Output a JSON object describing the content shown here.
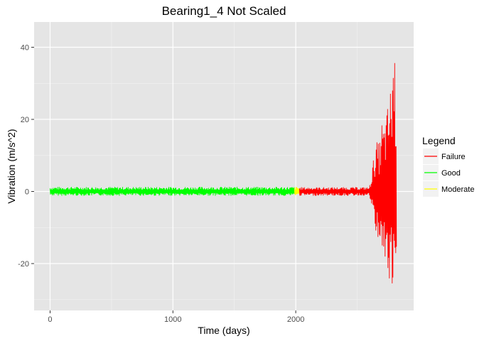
{
  "chart_data": {
    "type": "line",
    "title": "Bearing1_4 Not Scaled",
    "xlabel": "Time (days)",
    "ylabel": "Vibration (m/s^2)",
    "xlim": [
      -130,
      2960
    ],
    "ylim": [
      -33,
      47
    ],
    "x_ticks": [
      0,
      1000,
      2000
    ],
    "x_tick_labels": [
      "0",
      "1000",
      "2000"
    ],
    "y_ticks": [
      -20,
      0,
      20,
      40
    ],
    "y_tick_labels": [
      "-20",
      "0",
      "20",
      "40"
    ],
    "grid": true,
    "legend": {
      "title": "Legend",
      "position": "right",
      "entries": [
        {
          "label": "Failure",
          "color": "#ff0000"
        },
        {
          "label": "Good",
          "color": "#00ff00"
        },
        {
          "label": "Moderate",
          "color": "#ffff00"
        }
      ]
    },
    "series": [
      {
        "name": "Good",
        "color": "#00ff00",
        "x_range": [
          0,
          1990
        ],
        "envelope": [
          [
            0,
            -1.2,
            1.3
          ],
          [
            1990,
            -1.2,
            1.3
          ]
        ]
      },
      {
        "name": "Moderate",
        "color": "#ffff00",
        "x_range": [
          1990,
          2030
        ],
        "envelope": [
          [
            1990,
            -1.2,
            1.3
          ],
          [
            2030,
            -1.2,
            1.3
          ]
        ]
      },
      {
        "name": "Failure",
        "color": "#ff0000",
        "x_range": [
          2030,
          2820
        ],
        "envelope": [
          [
            2030,
            -1.2,
            1.2
          ],
          [
            2600,
            -1.2,
            1.2
          ],
          [
            2620,
            -5,
            6
          ],
          [
            2640,
            -10,
            11
          ],
          [
            2660,
            -14,
            14
          ],
          [
            2680,
            -13,
            13
          ],
          [
            2700,
            -18,
            20
          ],
          [
            2720,
            -20,
            18
          ],
          [
            2740,
            -23,
            22
          ],
          [
            2760,
            -27,
            27
          ],
          [
            2780,
            -28,
            31
          ],
          [
            2795,
            -30,
            44
          ],
          [
            2805,
            -29,
            40
          ],
          [
            2815,
            -30,
            31
          ],
          [
            2820,
            -22,
            24
          ]
        ]
      }
    ]
  }
}
